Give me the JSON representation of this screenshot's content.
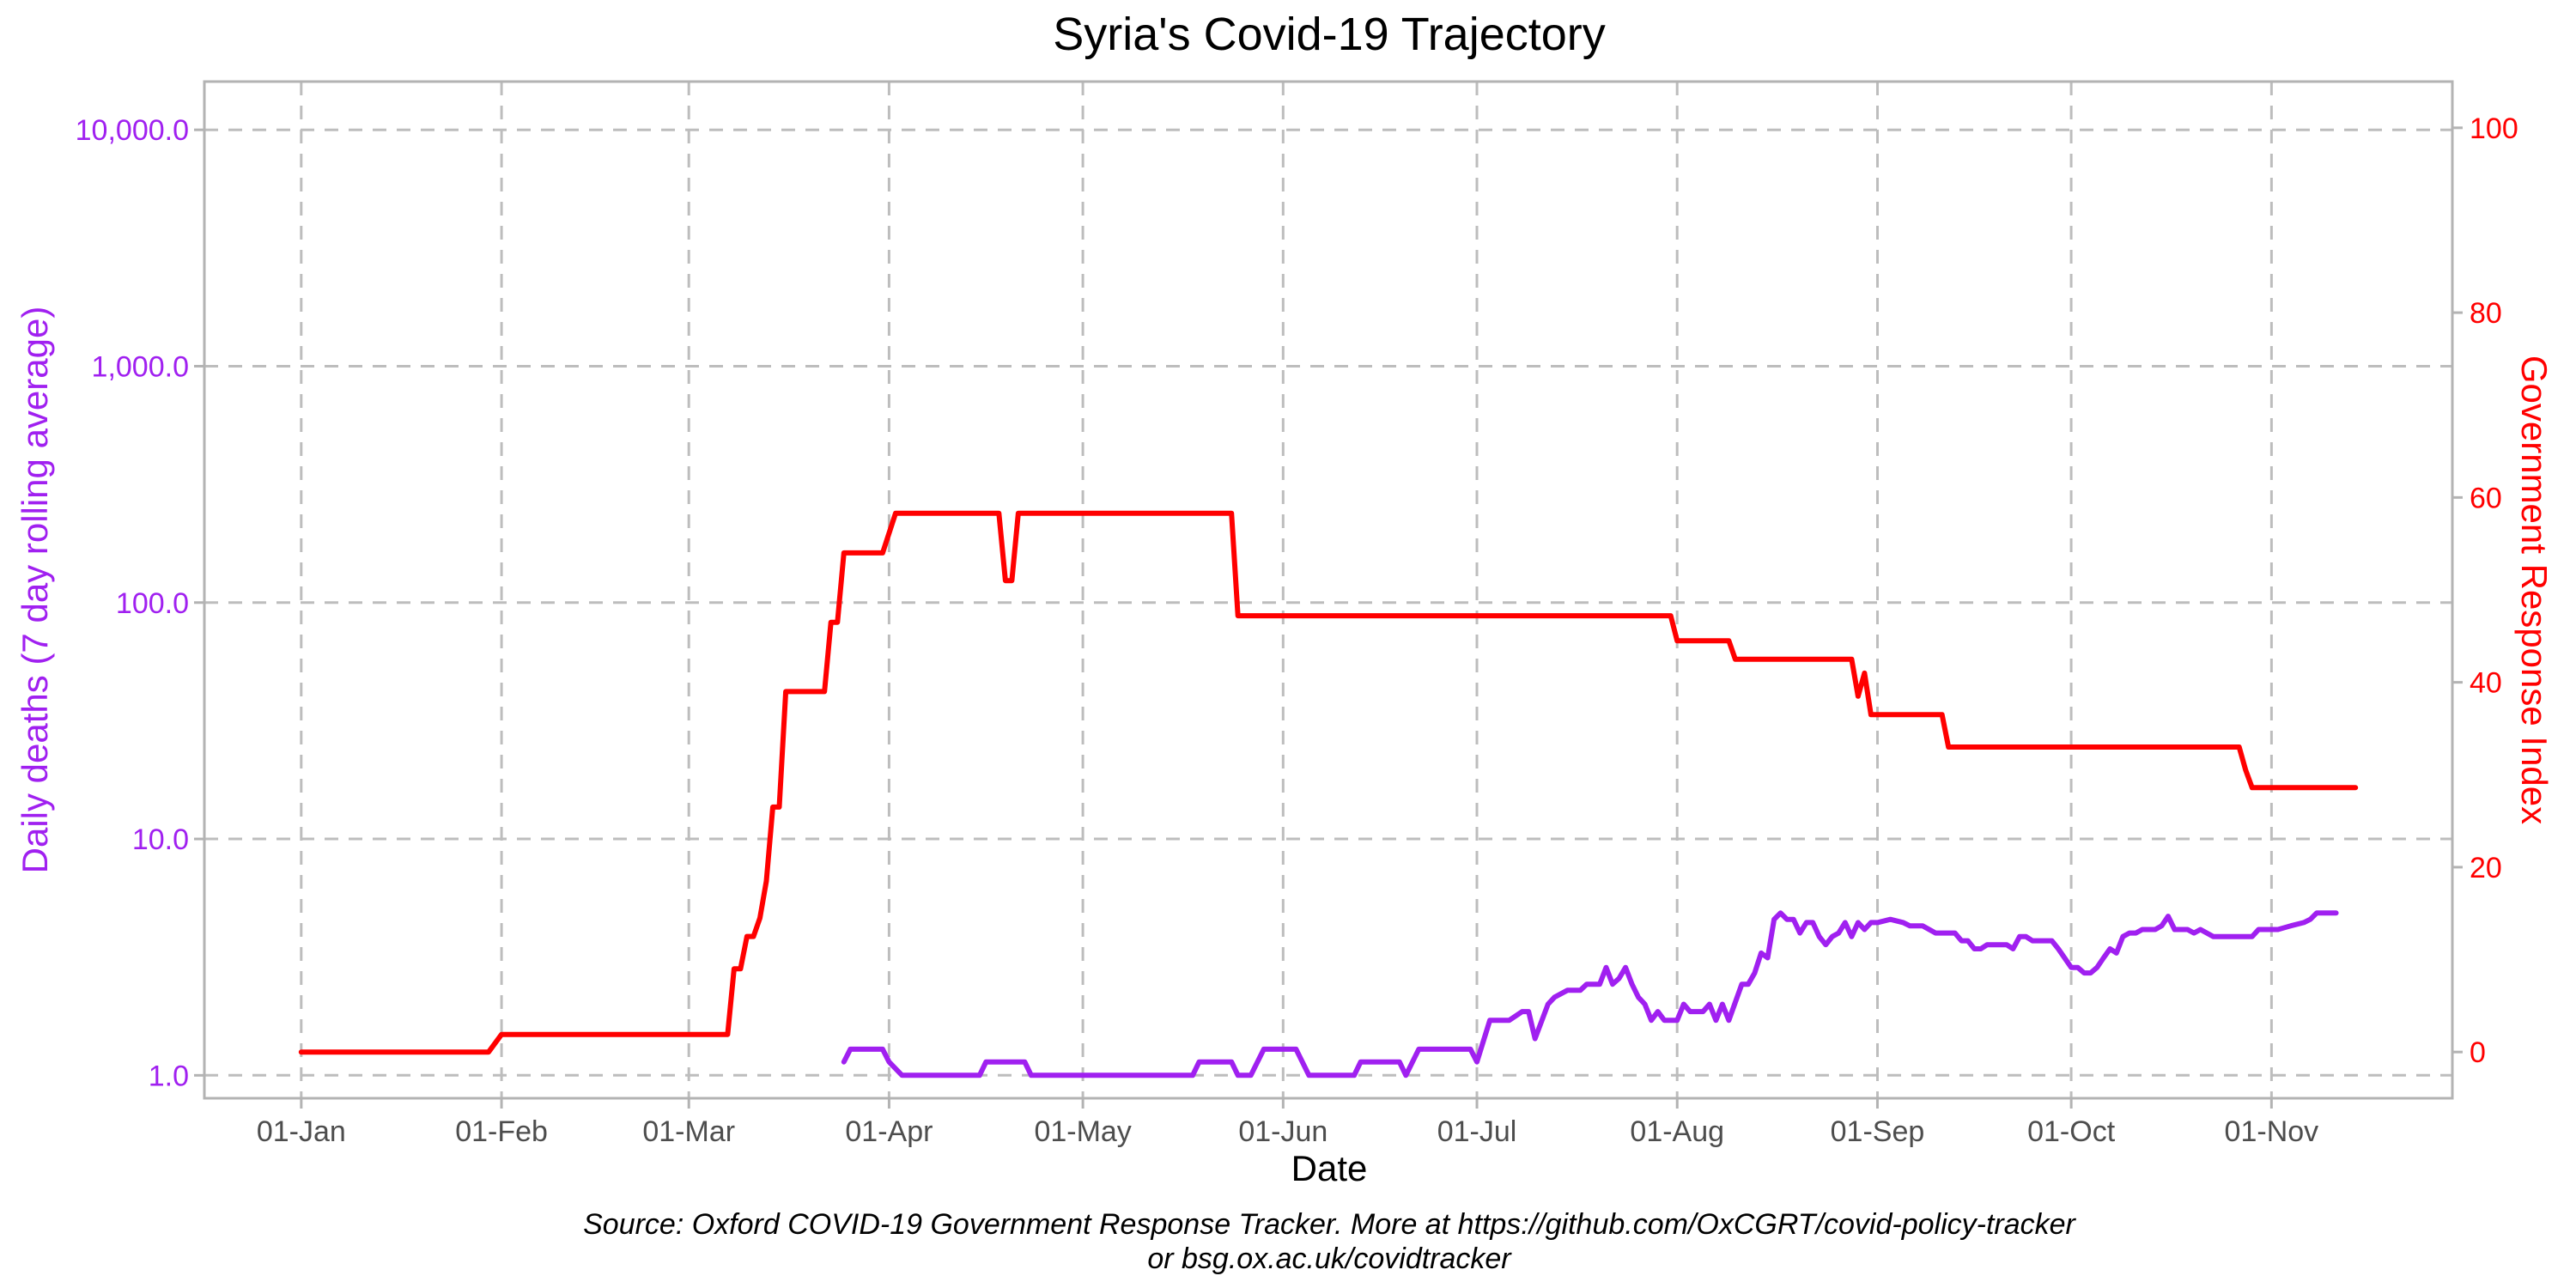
{
  "chart_data": {
    "type": "line",
    "title": "Syria's Covid-19 Trajectory",
    "xlabel": "Date",
    "ylabel_left": "Daily deaths (7 day rolling average)",
    "ylabel_right": "Government Response Index",
    "caption_line1": "Source: Oxford COVID-19 Government Response Tracker. More at https://github.com/OxCGRT/covid-policy-tracker",
    "caption_line2": "or bsg.ox.ac.uk/covidtracker",
    "colors": {
      "deaths": "#A020F0",
      "stringency": "#FF0000"
    },
    "grid": true,
    "y_left_scale": "log10",
    "y_left_lim": [
      0.8,
      16000
    ],
    "y_left_ticks": [
      {
        "value": 1,
        "label": "1.0"
      },
      {
        "value": 10,
        "label": "10.0"
      },
      {
        "value": 100,
        "label": "100.0"
      },
      {
        "value": 1000,
        "label": "1,000.0"
      },
      {
        "value": 10000,
        "label": "10,000.0"
      }
    ],
    "y_right_lim": [
      -5,
      105
    ],
    "y_right_ticks": [
      {
        "value": 0,
        "label": "0"
      },
      {
        "value": 20,
        "label": "20"
      },
      {
        "value": 40,
        "label": "40"
      },
      {
        "value": 60,
        "label": "60"
      },
      {
        "value": 80,
        "label": "80"
      },
      {
        "value": 100,
        "label": "100"
      }
    ],
    "x_lim": [
      "2019-12-17",
      "2020-11-29"
    ],
    "x_ticks": [
      {
        "date": "2020-01-01",
        "label": "01-Jan"
      },
      {
        "date": "2020-02-01",
        "label": "01-Feb"
      },
      {
        "date": "2020-03-01",
        "label": "01-Mar"
      },
      {
        "date": "2020-04-01",
        "label": "01-Apr"
      },
      {
        "date": "2020-05-01",
        "label": "01-May"
      },
      {
        "date": "2020-06-01",
        "label": "01-Jun"
      },
      {
        "date": "2020-07-01",
        "label": "01-Jul"
      },
      {
        "date": "2020-08-01",
        "label": "01-Aug"
      },
      {
        "date": "2020-09-01",
        "label": "01-Sep"
      },
      {
        "date": "2020-10-01",
        "label": "01-Oct"
      },
      {
        "date": "2020-11-01",
        "label": "01-Nov"
      }
    ],
    "series": [
      {
        "name": "Government Response Index",
        "axis": "right",
        "points": [
          [
            "2020-01-01",
            0
          ],
          [
            "2020-01-30",
            0
          ],
          [
            "2020-02-01",
            1.9
          ],
          [
            "2020-03-07",
            1.9
          ],
          [
            "2020-03-08",
            9.0
          ],
          [
            "2020-03-09",
            9.0
          ],
          [
            "2020-03-10",
            12.5
          ],
          [
            "2020-03-11",
            12.5
          ],
          [
            "2020-03-12",
            14.5
          ],
          [
            "2020-03-13",
            18.5
          ],
          [
            "2020-03-14",
            26.5
          ],
          [
            "2020-03-15",
            26.5
          ],
          [
            "2020-03-16",
            39.0
          ],
          [
            "2020-03-22",
            39.0
          ],
          [
            "2020-03-23",
            46.5
          ],
          [
            "2020-03-24",
            46.5
          ],
          [
            "2020-03-25",
            54.0
          ],
          [
            "2020-03-31",
            54.0
          ],
          [
            "2020-04-02",
            58.3
          ],
          [
            "2020-04-18",
            58.3
          ],
          [
            "2020-04-19",
            51.0
          ],
          [
            "2020-04-20",
            51.0
          ],
          [
            "2020-04-21",
            58.3
          ],
          [
            "2020-05-24",
            58.3
          ],
          [
            "2020-05-25",
            47.2
          ],
          [
            "2020-07-31",
            47.2
          ],
          [
            "2020-08-01",
            44.5
          ],
          [
            "2020-08-09",
            44.5
          ],
          [
            "2020-08-10",
            42.5
          ],
          [
            "2020-08-28",
            42.5
          ],
          [
            "2020-08-29",
            38.5
          ],
          [
            "2020-08-30",
            41.0
          ],
          [
            "2020-08-31",
            36.5
          ],
          [
            "2020-09-11",
            36.5
          ],
          [
            "2020-09-12",
            33.0
          ],
          [
            "2020-10-27",
            33.0
          ],
          [
            "2020-10-28",
            30.5
          ],
          [
            "2020-10-29",
            28.6
          ],
          [
            "2020-11-14",
            28.6
          ]
        ]
      },
      {
        "name": "Daily deaths (7 day rolling average)",
        "axis": "left",
        "points": [
          [
            "2020-03-25",
            1.14
          ],
          [
            "2020-03-26",
            1.29
          ],
          [
            "2020-03-31",
            1.29
          ],
          [
            "2020-04-01",
            1.14
          ],
          [
            "2020-04-03",
            1.0
          ],
          [
            "2020-04-15",
            1.0
          ],
          [
            "2020-04-16",
            1.14
          ],
          [
            "2020-04-22",
            1.14
          ],
          [
            "2020-04-23",
            1.0
          ],
          [
            "2020-05-18",
            1.0
          ],
          [
            "2020-05-19",
            1.14
          ],
          [
            "2020-05-24",
            1.14
          ],
          [
            "2020-05-25",
            1.0
          ],
          [
            "2020-05-27",
            1.0
          ],
          [
            "2020-05-29",
            1.29
          ],
          [
            "2020-06-03",
            1.29
          ],
          [
            "2020-06-05",
            1.0
          ],
          [
            "2020-06-12",
            1.0
          ],
          [
            "2020-06-13",
            1.14
          ],
          [
            "2020-06-19",
            1.14
          ],
          [
            "2020-06-20",
            1.0
          ],
          [
            "2020-06-22",
            1.29
          ],
          [
            "2020-06-30",
            1.29
          ],
          [
            "2020-07-01",
            1.14
          ],
          [
            "2020-07-03",
            1.71
          ],
          [
            "2020-07-06",
            1.71
          ],
          [
            "2020-07-08",
            1.86
          ],
          [
            "2020-07-09",
            1.86
          ],
          [
            "2020-07-10",
            1.43
          ],
          [
            "2020-07-12",
            2.0
          ],
          [
            "2020-07-13",
            2.14
          ],
          [
            "2020-07-15",
            2.29
          ],
          [
            "2020-07-17",
            2.29
          ],
          [
            "2020-07-18",
            2.43
          ],
          [
            "2020-07-20",
            2.43
          ],
          [
            "2020-07-21",
            2.86
          ],
          [
            "2020-07-22",
            2.43
          ],
          [
            "2020-07-23",
            2.57
          ],
          [
            "2020-07-24",
            2.86
          ],
          [
            "2020-07-25",
            2.43
          ],
          [
            "2020-07-26",
            2.14
          ],
          [
            "2020-07-27",
            2.0
          ],
          [
            "2020-07-28",
            1.71
          ],
          [
            "2020-07-29",
            1.86
          ],
          [
            "2020-07-30",
            1.71
          ],
          [
            "2020-08-01",
            1.71
          ],
          [
            "2020-08-02",
            2.0
          ],
          [
            "2020-08-03",
            1.86
          ],
          [
            "2020-08-05",
            1.86
          ],
          [
            "2020-08-06",
            2.0
          ],
          [
            "2020-08-07",
            1.71
          ],
          [
            "2020-08-08",
            2.0
          ],
          [
            "2020-08-09",
            1.71
          ],
          [
            "2020-08-11",
            2.43
          ],
          [
            "2020-08-12",
            2.43
          ],
          [
            "2020-08-13",
            2.71
          ],
          [
            "2020-08-14",
            3.29
          ],
          [
            "2020-08-15",
            3.14
          ],
          [
            "2020-08-16",
            4.57
          ],
          [
            "2020-08-17",
            4.86
          ],
          [
            "2020-08-18",
            4.57
          ],
          [
            "2020-08-19",
            4.57
          ],
          [
            "2020-08-20",
            4.0
          ],
          [
            "2020-08-21",
            4.43
          ],
          [
            "2020-08-22",
            4.43
          ],
          [
            "2020-08-23",
            3.86
          ],
          [
            "2020-08-24",
            3.57
          ],
          [
            "2020-08-25",
            3.86
          ],
          [
            "2020-08-26",
            4.0
          ],
          [
            "2020-08-27",
            4.43
          ],
          [
            "2020-08-28",
            3.86
          ],
          [
            "2020-08-29",
            4.43
          ],
          [
            "2020-08-30",
            4.14
          ],
          [
            "2020-08-31",
            4.43
          ],
          [
            "2020-09-01",
            4.43
          ],
          [
            "2020-09-03",
            4.57
          ],
          [
            "2020-09-05",
            4.43
          ],
          [
            "2020-09-06",
            4.29
          ],
          [
            "2020-09-08",
            4.29
          ],
          [
            "2020-09-10",
            4.0
          ],
          [
            "2020-09-13",
            4.0
          ],
          [
            "2020-09-14",
            3.71
          ],
          [
            "2020-09-15",
            3.71
          ],
          [
            "2020-09-16",
            3.43
          ],
          [
            "2020-09-17",
            3.43
          ],
          [
            "2020-09-18",
            3.57
          ],
          [
            "2020-09-21",
            3.57
          ],
          [
            "2020-09-22",
            3.43
          ],
          [
            "2020-09-23",
            3.86
          ],
          [
            "2020-09-24",
            3.86
          ],
          [
            "2020-09-25",
            3.71
          ],
          [
            "2020-09-28",
            3.71
          ],
          [
            "2020-09-29",
            3.43
          ],
          [
            "2020-10-01",
            2.86
          ],
          [
            "2020-10-02",
            2.86
          ],
          [
            "2020-10-03",
            2.71
          ],
          [
            "2020-10-04",
            2.71
          ],
          [
            "2020-10-05",
            2.86
          ],
          [
            "2020-10-06",
            3.14
          ],
          [
            "2020-10-07",
            3.43
          ],
          [
            "2020-10-08",
            3.29
          ],
          [
            "2020-10-09",
            3.86
          ],
          [
            "2020-10-10",
            4.0
          ],
          [
            "2020-10-11",
            4.0
          ],
          [
            "2020-10-12",
            4.14
          ],
          [
            "2020-10-14",
            4.14
          ],
          [
            "2020-10-15",
            4.29
          ],
          [
            "2020-10-16",
            4.71
          ],
          [
            "2020-10-17",
            4.14
          ],
          [
            "2020-10-19",
            4.14
          ],
          [
            "2020-10-20",
            4.0
          ],
          [
            "2020-10-21",
            4.14
          ],
          [
            "2020-10-22",
            4.0
          ],
          [
            "2020-10-23",
            3.86
          ],
          [
            "2020-10-29",
            3.86
          ],
          [
            "2020-10-30",
            4.14
          ],
          [
            "2020-11-02",
            4.14
          ],
          [
            "2020-11-04",
            4.29
          ],
          [
            "2020-11-06",
            4.43
          ],
          [
            "2020-11-07",
            4.57
          ],
          [
            "2020-11-08",
            4.86
          ],
          [
            "2020-11-11",
            4.86
          ]
        ]
      }
    ]
  }
}
